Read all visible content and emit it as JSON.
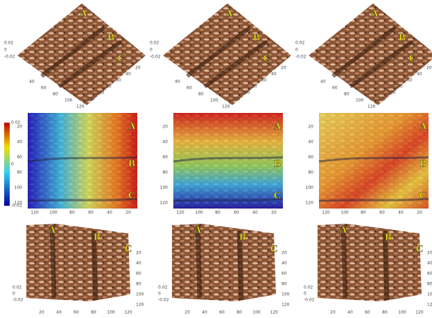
{
  "panels": [
    {
      "markers": [
        "A",
        "B",
        "C"
      ],
      "z_ticks": [
        "0.02",
        "0",
        "-0.02"
      ],
      "x_ticks": [
        "40",
        "60",
        "80",
        "100",
        "120"
      ],
      "y_ticks": [
        "20",
        "40",
        "60",
        "80",
        "100",
        "120"
      ]
    },
    {
      "markers": [
        "A",
        "B",
        "C"
      ],
      "z_ticks": [
        "0.02",
        "0",
        "-0.02"
      ],
      "x_ticks": [
        "40",
        "60",
        "80",
        "100",
        "120"
      ],
      "y_ticks": [
        "20",
        "40",
        "60",
        "80",
        "100",
        "120"
      ]
    },
    {
      "markers": [
        "A",
        "B",
        "C"
      ],
      "z_ticks": [
        "0.02",
        "0",
        "-0.02"
      ],
      "x_ticks": [
        "40",
        "60",
        "80",
        "100",
        "120"
      ],
      "y_ticks": [
        "20",
        "40",
        "60",
        "80",
        "100",
        "120"
      ]
    },
    {
      "markers": [
        "A",
        "B",
        "C"
      ],
      "y_ticks": [
        "20",
        "40",
        "60",
        "80",
        "100",
        "120"
      ],
      "x_ticks": [
        "120",
        "100",
        "80",
        "60",
        "40",
        "20"
      ]
    },
    {
      "markers": [
        "A",
        "B",
        "C"
      ],
      "y_ticks": [
        "20",
        "40",
        "60",
        "80",
        "100",
        "120"
      ],
      "x_ticks": [
        "120",
        "100",
        "80",
        "60",
        "40",
        "20"
      ]
    },
    {
      "markers": [
        "A",
        "B",
        "C"
      ],
      "y_ticks": [
        "20",
        "40",
        "60",
        "80",
        "100",
        "120"
      ],
      "x_ticks": [
        "120",
        "100",
        "80",
        "60",
        "40",
        "20"
      ]
    },
    {
      "markers": [
        "A",
        "B",
        "C"
      ],
      "z_ticks": [
        "0.02",
        "0",
        "-0.02"
      ],
      "x_ticks": [
        "20",
        "40",
        "60",
        "80",
        "100",
        "120"
      ],
      "y_ticks": [
        "20",
        "40",
        "60",
        "80",
        "100",
        "120"
      ]
    },
    {
      "markers": [
        "A",
        "B",
        "C"
      ],
      "z_ticks": [
        "0.02",
        "0",
        "-0.02"
      ],
      "x_ticks": [
        "20",
        "40",
        "60",
        "80",
        "100",
        "120"
      ],
      "y_ticks": [
        "20",
        "40",
        "60",
        "80",
        "100",
        "120"
      ]
    },
    {
      "markers": [
        "A",
        "B",
        "C"
      ],
      "z_ticks": [
        "0.02",
        "0",
        "-0.02"
      ],
      "x_ticks": [
        "20",
        "40",
        "60",
        "80",
        "100",
        "120"
      ],
      "y_ticks": [
        "20",
        "40",
        "60",
        "80",
        "100",
        "120"
      ]
    }
  ],
  "colorbar": {
    "ticks": [
      "0.02",
      "0",
      "-0.02"
    ]
  }
}
